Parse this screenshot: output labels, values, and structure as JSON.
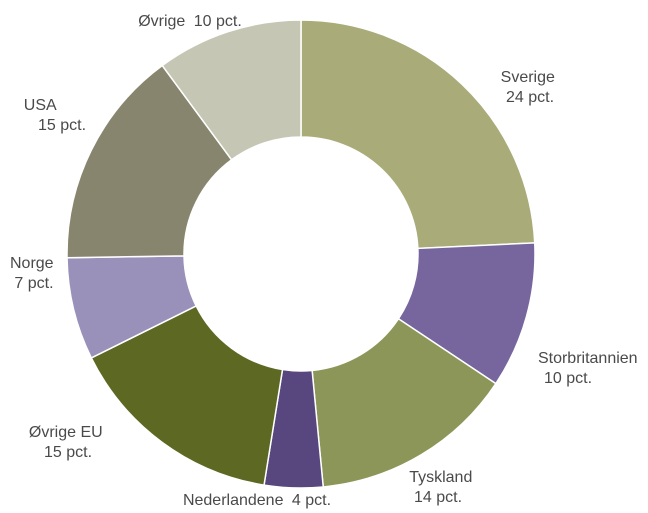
{
  "chart_data": {
    "type": "pie",
    "donut": true,
    "title": "",
    "slices": [
      {
        "label": "Sverige",
        "value_text": "24 pct.",
        "value": 24,
        "color": "#a9ac78"
      },
      {
        "label": "Storbritannien",
        "value_text": "10 pct.",
        "value": 10,
        "color": "#77669e"
      },
      {
        "label": "Tyskland",
        "value_text": "14 pct.",
        "value": 14,
        "color": "#8c9658"
      },
      {
        "label": "Nederlandene",
        "value_text": "4 pct.",
        "value": 4,
        "color": "#58467e"
      },
      {
        "label": "Øvrige EU",
        "value_text": "15 pct.",
        "value": 15,
        "color": "#5d6823"
      },
      {
        "label": "Norge",
        "value_text": "7 pct.",
        "value": 7,
        "color": "#9a91bb"
      },
      {
        "label": "USA",
        "value_text": "15 pct.",
        "value": 15,
        "color": "#88856f"
      },
      {
        "label": "Øvrige",
        "value_text": "10 pct.",
        "value": 10,
        "color": "#c5c6b3"
      }
    ]
  }
}
